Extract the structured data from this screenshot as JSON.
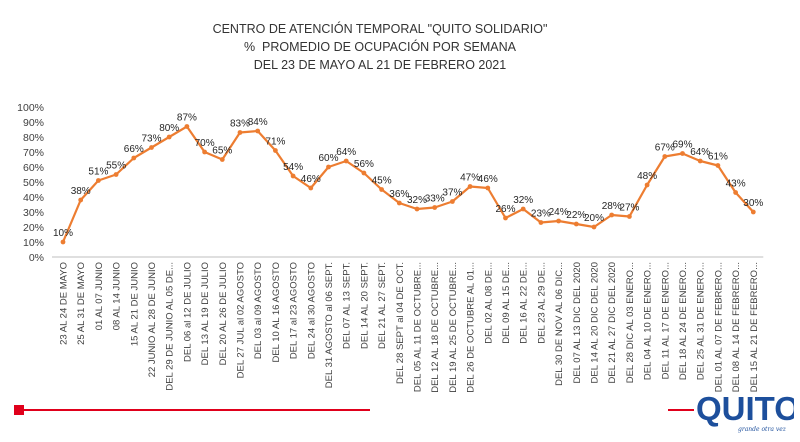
{
  "chart_data": {
    "type": "line",
    "title": "CENTRO DE ATENCIÓN TEMPORAL \"QUITO SOLIDARIO\"",
    "subtitle_lines": [
      "%  PROMEDIO DE OCUPACIÓN POR SEMANA",
      "DEL 23 DE MAYO AL 21 DE FEBRERO 2021"
    ],
    "xlabel": "",
    "ylabel": "",
    "ylim": [
      0,
      100
    ],
    "y_ticks": [
      "0%",
      "10%",
      "20%",
      "30%",
      "40%",
      "50%",
      "60%",
      "70%",
      "80%",
      "90%",
      "100%"
    ],
    "grid": false,
    "legend": "none",
    "line_color": "#ed7d31",
    "categories": [
      "23 AL 24 DE MAYO",
      "25 AL 31 DE MAYO",
      "01 AL 07 JUNIO",
      "08 AL 14 JUNIO",
      "15 AL 21 DE JUNIO",
      "22 JUNIO AL 28 DE JUNIO",
      "DEL 29 DE JUNIO AL 05 DE...",
      "DEL 06 al 12 DE JULIO",
      "DEL 13 AL 19 DE JULIO",
      "DEL 20 AL 26 DE JULIO",
      "DEL 27 JUL al 02 AGOSTO",
      "DEL 03 al 09 AGOSTO",
      "DEL 10 AL 16 AGOSTO",
      "DEL 17 al 23 AGOSTO",
      "DEL 24 al 30 AGOSTO",
      "DEL 31 AGOSTO al 06 SEPT.",
      "DEL 07 AL 13 SEPT.",
      "DEL 14 AL 20 SEPT.",
      "DEL 21 AL 27 SEPT.",
      "DEL 28 SEPT al 04 DE OCT.",
      "DEL 05 AL 11 DE OCTUBRE...",
      "DEL 12 AL 18 DE OCTUBRE...",
      "DEL 19 AL 25 DE OCTUBRE...",
      "DEL 26 DE OCTUBRE AL 01...",
      "DEL 02 AL 08 DE...",
      "DEL 09 AL 15 DE...",
      "DEL 16 AL 22 DE...",
      "DEL 23 AL 29 DE...",
      "DEL 30 DE NOV AL 06 DIC...",
      "DEL 07 AL 13 DIC DEL 2020",
      "DEL 14 AL 20 DIC DEL 2020",
      "DEL 21 AL 27 DIC DEL 2020",
      "DEL 28 DIC AL 03 ENERO...",
      "DEL 04 AL 10 DE ENERO...",
      "DEL 11 AL 17 DE ENERO...",
      "DEL 18 AL 24 DE ENERO...",
      "DEL 25 AL 31 DE ENERO...",
      "DEL 01 AL 07 DE FEBRERO...",
      "DEL 08 AL 14 DE FEBRERO...",
      "DEL 15 AL 21 DE FEBRERO..."
    ],
    "values": [
      10,
      38,
      51,
      55,
      66,
      73,
      80,
      87,
      70,
      65,
      83,
      84,
      71,
      54,
      46,
      60,
      64,
      56,
      45,
      36,
      32,
      33,
      37,
      47,
      46,
      26,
      32,
      23,
      24,
      22,
      20,
      28,
      27,
      48,
      67,
      69,
      64,
      61,
      43,
      30
    ],
    "point_labels": [
      "10%",
      "38%",
      "51%",
      "55%",
      "66%",
      "73%",
      "80%",
      "87%",
      "70%",
      "65%",
      "83%",
      "84%",
      "71%",
      "54%",
      "46%",
      "60%",
      "64%",
      "56%",
      "45%",
      "36%",
      "32%",
      "33%",
      "37%",
      "47%",
      "46%",
      "26%",
      "32%",
      "23%",
      "24%",
      "22%",
      "20%",
      "28%",
      "27%",
      "48%",
      "67%",
      "69%",
      "64%",
      "61%",
      "43%",
      "30%"
    ]
  },
  "logo": {
    "text": "QUITO",
    "tagline": "grande otra vez"
  },
  "colors": {
    "accent_red": "#e0001b",
    "logo_blue": "#1d4f9c"
  }
}
